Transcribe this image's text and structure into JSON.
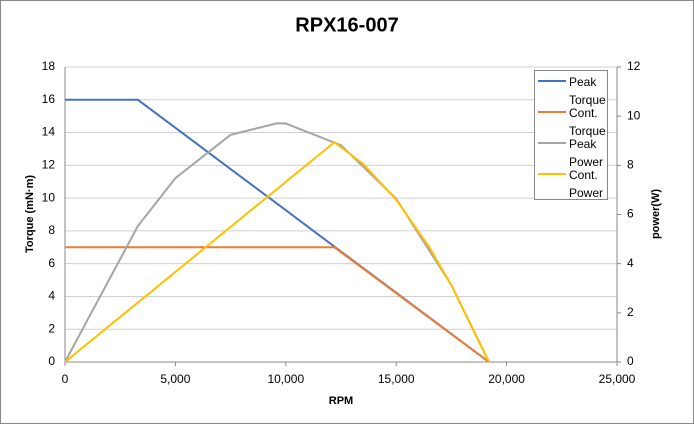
{
  "chart_data": {
    "type": "line",
    "title": "RPX16-007",
    "xlabel": "RPM",
    "ylabel": "Torque (mN·m)",
    "y2label": "power(W)",
    "xlim": [
      0,
      25000
    ],
    "xticks": [
      0,
      {
        "value": 5000,
        "label": "5,000"
      },
      {
        "value": 10000,
        "label": "10,000"
      },
      {
        "value": 15000,
        "label": "15,000"
      },
      {
        "value": 20000,
        "label": "20,000"
      },
      {
        "value": 25000,
        "label": "25,000"
      }
    ],
    "ylim": [
      0,
      18
    ],
    "yticks": [
      0,
      2,
      4,
      6,
      8,
      10,
      12,
      14,
      16,
      18
    ],
    "y2lim": [
      0,
      12
    ],
    "y2ticks": [
      0,
      2,
      4,
      6,
      8,
      10,
      12
    ],
    "grid": true,
    "legend": "upper right",
    "series": [
      {
        "name": "Peak Torque",
        "color": "#4472c4",
        "x": [
          0,
          1000,
          2000,
          3300,
          5000,
          7500,
          10000,
          12500,
          15000,
          17500,
          19200
        ],
        "values": [
          16,
          16,
          16,
          16,
          14.29,
          11.77,
          9.26,
          6.74,
          4.23,
          1.71,
          0
        ]
      },
      {
        "name": "Cont. Torque",
        "color": "#ed7d31",
        "x": [
          0,
          12200,
          15000,
          17500,
          19200
        ],
        "values": [
          7,
          7,
          4.2,
          1.7,
          0
        ]
      },
      {
        "name": "Peak Power",
        "color": "#a5a5a5",
        "axis": "y2",
        "x": [
          0,
          1000,
          2000,
          3300,
          5000,
          7500,
          9600,
          10000,
          12500,
          15000,
          17500,
          19200
        ],
        "values": [
          0,
          1.68,
          3.35,
          5.53,
          7.48,
          9.24,
          9.71,
          9.7,
          8.82,
          6.64,
          3.13,
          0
        ]
      },
      {
        "name": "Cont. Power",
        "color": "#ffc000",
        "axis": "y2",
        "x": [
          0,
          12200,
          13500,
          15000,
          16500,
          17500,
          19200
        ],
        "values": [
          0,
          8.94,
          8.06,
          6.6,
          4.67,
          3.12,
          0
        ]
      }
    ]
  }
}
